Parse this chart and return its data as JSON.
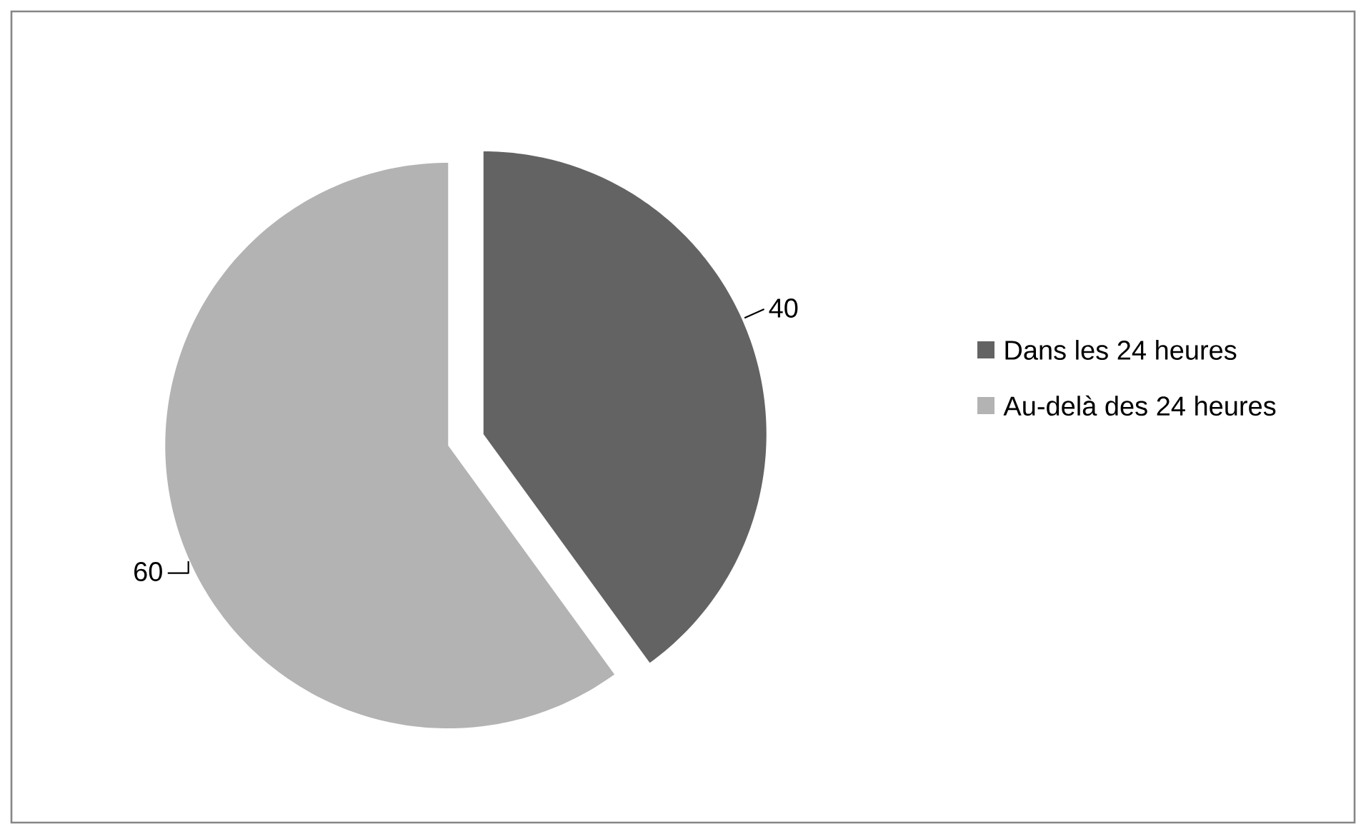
{
  "chart_data": {
    "type": "pie",
    "categories": [
      "Dans les 24 heures",
      "Au-delà des 24 heures"
    ],
    "values": [
      40,
      60
    ],
    "colors": [
      "#636363",
      "#b3b3b3"
    ],
    "data_labels": true,
    "legend": "right"
  }
}
